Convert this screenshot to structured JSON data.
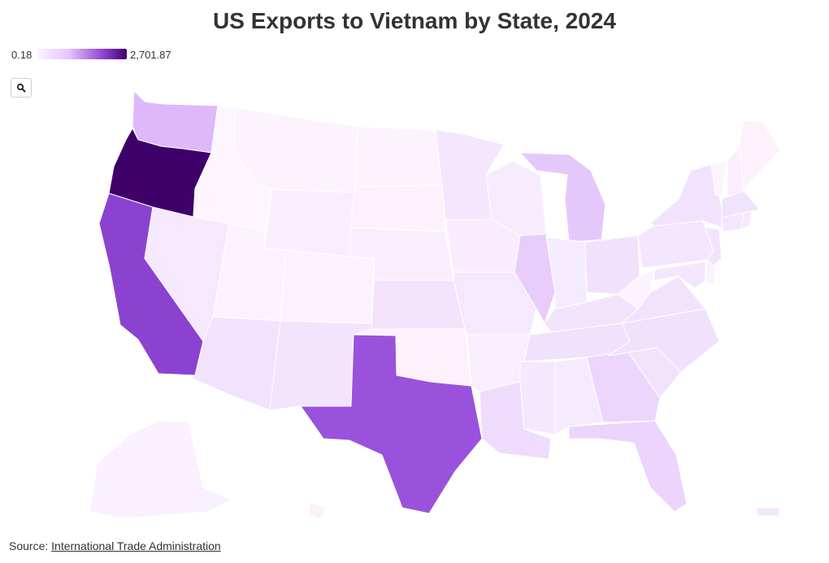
{
  "title": "US Exports to Vietnam by State, 2024",
  "legend": {
    "min_label": "0.18",
    "max_label": "2,701.87",
    "colors": [
      "#fbf2ff",
      "#e8c4ff",
      "#8b3fd1",
      "#3e0069"
    ]
  },
  "zoom_icon": "search-icon",
  "source": {
    "prefix": "Source:",
    "link_text": "International Trade Administration"
  },
  "chart_data": {
    "type": "choropleth",
    "title": "US Exports to Vietnam by State, 2024",
    "color_range": [
      0.18,
      2701.87
    ],
    "regions": [
      {
        "id": "WA",
        "color": "#ddb8fa"
      },
      {
        "id": "OR",
        "color": "#3e0069"
      },
      {
        "id": "CA",
        "color": "#8b42d0"
      },
      {
        "id": "NV",
        "color": "#f6e8fe"
      },
      {
        "id": "ID",
        "color": "#fdf6ff"
      },
      {
        "id": "MT",
        "color": "#fcf3ff"
      },
      {
        "id": "WY",
        "color": "#f9eefe"
      },
      {
        "id": "UT",
        "color": "#fcf2ff"
      },
      {
        "id": "AZ",
        "color": "#f3e2fd"
      },
      {
        "id": "CO",
        "color": "#fcf2ff"
      },
      {
        "id": "NM",
        "color": "#f2e4fd"
      },
      {
        "id": "ND",
        "color": "#fcf3ff"
      },
      {
        "id": "SD",
        "color": "#fdf1fb"
      },
      {
        "id": "NE",
        "color": "#f9eefe"
      },
      {
        "id": "KS",
        "color": "#f3e3fd"
      },
      {
        "id": "OK",
        "color": "#fdf1fb"
      },
      {
        "id": "TX",
        "color": "#9a52dc"
      },
      {
        "id": "MN",
        "color": "#f3e6fd"
      },
      {
        "id": "IA",
        "color": "#f9ecfe"
      },
      {
        "id": "MO",
        "color": "#f5e9fd"
      },
      {
        "id": "AR",
        "color": "#f8eefe"
      },
      {
        "id": "LA",
        "color": "#efdcfc"
      },
      {
        "id": "WI",
        "color": "#f7ecfe"
      },
      {
        "id": "IL",
        "color": "#e8cdfb"
      },
      {
        "id": "MI",
        "color": "#e5c8fb"
      },
      {
        "id": "IN",
        "color": "#f5ebfe"
      },
      {
        "id": "OH",
        "color": "#f1e1fd"
      },
      {
        "id": "KY",
        "color": "#f3e4fd"
      },
      {
        "id": "TN",
        "color": "#f0e1fd"
      },
      {
        "id": "MS",
        "color": "#f4e8fe"
      },
      {
        "id": "AL",
        "color": "#f6ebfe"
      },
      {
        "id": "GA",
        "color": "#ecd6fc"
      },
      {
        "id": "FL",
        "color": "#ecd4fc"
      },
      {
        "id": "SC",
        "color": "#f2e3fd"
      },
      {
        "id": "NC",
        "color": "#f0e2fd"
      },
      {
        "id": "VA",
        "color": "#f2e3fd"
      },
      {
        "id": "WV",
        "color": "#fbf3ff"
      },
      {
        "id": "PA",
        "color": "#f3e6fe"
      },
      {
        "id": "NY",
        "color": "#f1e3fd"
      },
      {
        "id": "VT",
        "color": "#fcf4ff"
      },
      {
        "id": "NH",
        "color": "#fbeefe"
      },
      {
        "id": "ME",
        "color": "#fdf1fb"
      },
      {
        "id": "MA",
        "color": "#f1e3fd"
      },
      {
        "id": "CT",
        "color": "#f3e6fe"
      },
      {
        "id": "RI",
        "color": "#f5e9fe"
      },
      {
        "id": "NJ",
        "color": "#f3e4fd"
      },
      {
        "id": "DE",
        "color": "#fbf1ff"
      },
      {
        "id": "MD",
        "color": "#f4e6fe"
      },
      {
        "id": "AK",
        "color": "#fbf0ff"
      },
      {
        "id": "HI",
        "color": "#fcf0fb"
      },
      {
        "id": "PR",
        "color": "#f3e6fd"
      }
    ]
  }
}
